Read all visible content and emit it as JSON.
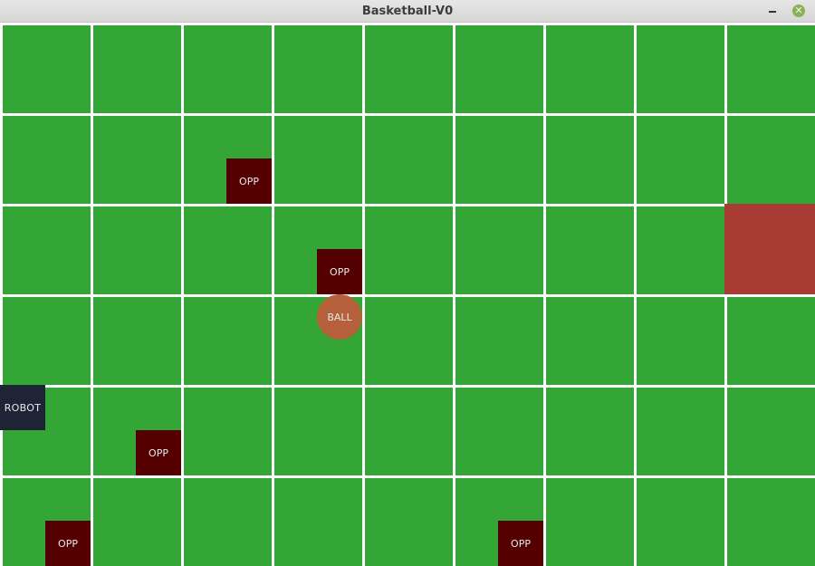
{
  "window": {
    "title": "Basketball-V0",
    "minimize_icon": "minimize-icon",
    "close_icon": "close-icon"
  },
  "grid": {
    "cols": 9,
    "rows": 6,
    "field_color": "#33a636",
    "line_color": "#ffffff"
  },
  "hoop": {
    "col": 8,
    "row": 2,
    "color": "#a83c35"
  },
  "pieces": [
    {
      "kind": "opponent",
      "label": "OPP",
      "col": 2.5,
      "row": 1.5,
      "color": "#550000"
    },
    {
      "kind": "opponent",
      "label": "OPP",
      "col": 3.5,
      "row": 2.5,
      "color": "#550000"
    },
    {
      "kind": "ball",
      "label": "BALL",
      "col": 3.5,
      "row": 3.0,
      "color": "#b5603a"
    },
    {
      "kind": "robot",
      "label": "ROBOT",
      "col": 0.0,
      "row": 4.0,
      "color": "#1e2436"
    },
    {
      "kind": "opponent",
      "label": "OPP",
      "col": 1.5,
      "row": 4.5,
      "color": "#550000"
    },
    {
      "kind": "opponent",
      "label": "OPP",
      "col": 0.5,
      "row": 5.5,
      "color": "#550000"
    },
    {
      "kind": "opponent",
      "label": "OPP",
      "col": 5.5,
      "row": 5.5,
      "color": "#550000"
    }
  ]
}
